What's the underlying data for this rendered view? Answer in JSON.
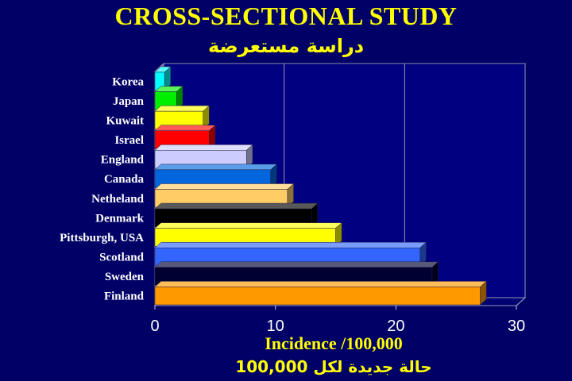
{
  "title": "CROSS-SECTIONAL STUDY",
  "subtitle": "دراسة مستعرضة",
  "chart_data": {
    "type": "bar",
    "orientation": "horizontal",
    "categories": [
      "Korea",
      "Japan",
      "Kuwait",
      "Israel",
      "England",
      "Canada",
      "Netheland",
      "Denmark",
      "Pittsburgh, USA",
      "Scotland",
      "Sweden",
      "Finland"
    ],
    "values": [
      0.8,
      1.8,
      4.0,
      4.5,
      7.6,
      9.6,
      11.0,
      13.0,
      15.0,
      22.0,
      23.0,
      27.0
    ],
    "colors": [
      "#00ffff",
      "#00ee00",
      "#ffff00",
      "#ff0000",
      "#ccccff",
      "#0066dd",
      "#ffcc66",
      "#000000",
      "#ffff00",
      "#3366ff",
      "#000033",
      "#ff9900"
    ],
    "xlabel": "Incidence /100,000",
    "xlabel_secondary": "حالة جديدة لكل 100,000",
    "xlim": [
      0,
      30
    ],
    "xticks": [
      0,
      10,
      20,
      30
    ],
    "grid": true,
    "background": "#000066",
    "plot_background": "#000080",
    "text_color": "#ffff00"
  }
}
